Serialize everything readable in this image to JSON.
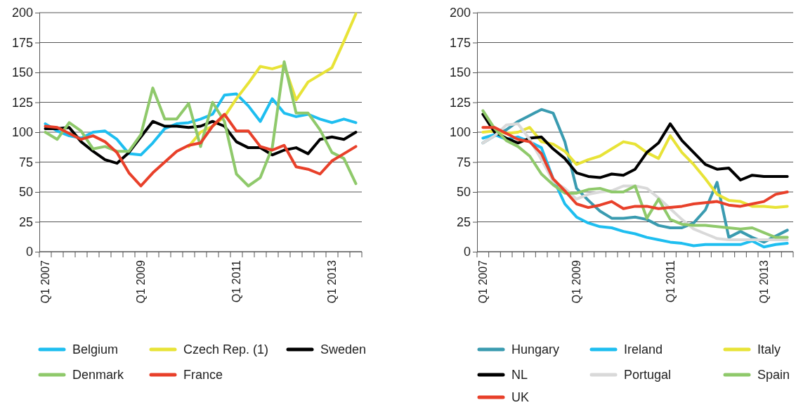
{
  "chart_data": [
    {
      "type": "line",
      "categories": [
        "Q1 2007",
        null,
        null,
        null,
        null,
        null,
        null,
        null,
        "Q1 2009",
        null,
        null,
        null,
        null,
        null,
        null,
        null,
        "Q1 2011",
        null,
        null,
        null,
        null,
        null,
        null,
        null,
        "Q1 2013",
        null,
        null
      ],
      "ylim": [
        0,
        200
      ],
      "yticks": [
        0,
        25,
        50,
        75,
        100,
        125,
        150,
        175,
        200
      ],
      "grid": "y",
      "legend": "bottom",
      "series": [
        {
          "name": "Belgium",
          "color": "#1ebef0",
          "values": [
            107,
            101,
            97,
            95,
            100,
            101,
            94,
            82,
            81,
            91,
            103,
            107,
            108,
            111,
            115,
            131,
            132,
            122,
            109,
            128,
            116,
            113,
            115,
            111,
            108,
            111,
            108
          ]
        },
        {
          "name": "Czech Rep. (1)",
          "color": "#e8e337",
          "values": [
            null,
            null,
            null,
            null,
            null,
            null,
            null,
            null,
            null,
            null,
            null,
            null,
            88,
            100,
            105,
            113,
            128,
            141,
            155,
            153,
            156,
            127,
            142,
            148,
            154,
            176,
            199
          ]
        },
        {
          "name": "Sweden",
          "color": "#000000",
          "values": [
            103,
            103,
            104,
            92,
            84,
            77,
            74,
            83,
            96,
            109,
            105,
            105,
            104,
            105,
            109,
            105,
            92,
            87,
            87,
            81,
            85,
            87,
            82,
            94,
            96,
            94,
            100
          ]
        },
        {
          "name": "Denmark",
          "color": "#8fc96b",
          "values": [
            100,
            94,
            108,
            101,
            86,
            88,
            84,
            84,
            98,
            137,
            111,
            111,
            124,
            88,
            125,
            109,
            65,
            55,
            62,
            87,
            159,
            116,
            116,
            102,
            83,
            78,
            57
          ]
        },
        {
          "name": "France",
          "color": "#e8402a",
          "values": [
            105,
            104,
            99,
            94,
            97,
            92,
            83,
            66,
            55,
            66,
            75,
            84,
            89,
            91,
            105,
            115,
            101,
            101,
            88,
            85,
            89,
            71,
            69,
            65,
            76,
            82,
            88
          ]
        }
      ]
    },
    {
      "type": "line",
      "categories": [
        "Q1 2007",
        null,
        null,
        null,
        null,
        null,
        null,
        null,
        "Q1 2009",
        null,
        null,
        null,
        null,
        null,
        null,
        null,
        "Q1 2011",
        null,
        null,
        null,
        null,
        null,
        null,
        null,
        "Q1 2013",
        null,
        null
      ],
      "ylim": [
        0,
        200
      ],
      "yticks": [
        0,
        25,
        50,
        75,
        100,
        125,
        150,
        175,
        200
      ],
      "grid": "y",
      "legend": "bottom",
      "series": [
        {
          "name": "Hungary",
          "color": "#3a9bb0",
          "values": [
            91,
            97,
            102,
            109,
            114,
            119,
            116,
            92,
            53,
            43,
            34,
            28,
            28,
            29,
            27,
            22,
            20,
            20,
            24,
            35,
            58,
            12,
            17,
            12,
            8,
            13,
            18
          ]
        },
        {
          "name": "Ireland",
          "color": "#1ebef0",
          "values": [
            95,
            98,
            94,
            96,
            92,
            87,
            61,
            40,
            29,
            24,
            21,
            20,
            17,
            15,
            12,
            10,
            8,
            7,
            5,
            6,
            6,
            6,
            6,
            9,
            4,
            6,
            7
          ]
        },
        {
          "name": "Italy",
          "color": "#e8e337",
          "values": [
            100,
            101,
            99,
            100,
            104,
            92,
            90,
            84,
            73,
            77,
            80,
            86,
            92,
            90,
            83,
            78,
            97,
            83,
            73,
            61,
            48,
            43,
            42,
            38,
            38,
            37,
            38
          ]
        },
        {
          "name": "NL",
          "color": "#000000",
          "values": [
            115,
            100,
            95,
            91,
            95,
            96,
            86,
            78,
            66,
            63,
            62,
            65,
            64,
            69,
            83,
            91,
            107,
            93,
            83,
            73,
            69,
            70,
            60,
            64,
            63,
            63,
            63
          ]
        },
        {
          "name": "Portugal",
          "color": "#d9d9d9",
          "values": [
            91,
            97,
            106,
            107,
            94,
            77,
            59,
            53,
            44,
            48,
            50,
            51,
            55,
            55,
            53,
            45,
            36,
            27,
            19,
            15,
            11,
            10,
            10,
            10,
            10,
            10,
            10
          ]
        },
        {
          "name": "Spain",
          "color": "#8fc96b",
          "values": [
            118,
            103,
            93,
            88,
            80,
            65,
            56,
            49,
            49,
            52,
            53,
            50,
            50,
            55,
            28,
            44,
            27,
            23,
            22,
            22,
            21,
            20,
            19,
            20,
            16,
            12,
            12
          ]
        },
        {
          "name": "UK",
          "color": "#e8402a",
          "values": [
            104,
            104,
            99,
            94,
            92,
            82,
            61,
            51,
            40,
            37,
            39,
            42,
            36,
            38,
            38,
            36,
            37,
            38,
            40,
            41,
            42,
            39,
            38,
            40,
            42,
            48,
            50
          ]
        }
      ]
    }
  ]
}
